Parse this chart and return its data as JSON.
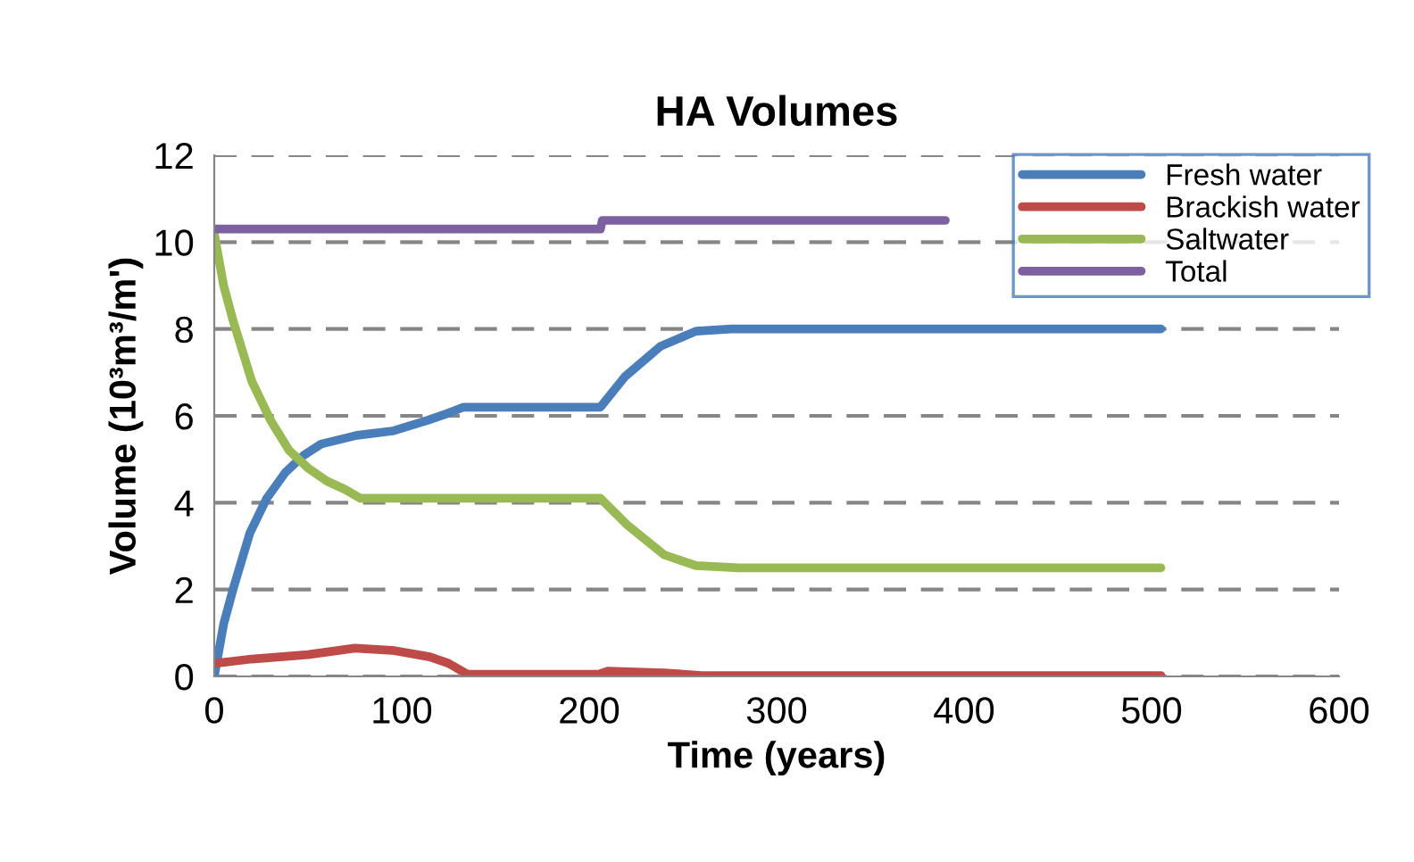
{
  "chart_data": {
    "type": "line",
    "title": "HA Volumes",
    "xlabel": "Time (years)",
    "ylabel": "Volume (10³m³/m')",
    "xlim": [
      0,
      600
    ],
    "xticks": [
      0,
      100,
      200,
      300,
      400,
      500,
      600
    ],
    "ylim": [
      0,
      12
    ],
    "yticks": [
      0,
      2,
      4,
      6,
      8,
      10,
      12
    ],
    "grid": "y",
    "legend": "top right",
    "marker": "none",
    "line_style": "solid",
    "series": [
      {
        "name": "Fresh water",
        "color": "#4a7ebb",
        "x": [
          0,
          5,
          10,
          19,
          28,
          38,
          48,
          57,
          76,
          95,
          114,
          124,
          133,
          206,
          219,
          238,
          257,
          276,
          505
        ],
        "values": [
          0,
          1.2,
          2,
          3.3,
          4.1,
          4.7,
          5.1,
          5.35,
          5.55,
          5.65,
          5.9,
          6.05,
          6.2,
          6.2,
          6.9,
          7.6,
          7.95,
          8.0,
          8.0
        ]
      },
      {
        "name": "Brackish water",
        "color": "#be4b48",
        "x": [
          0,
          20,
          50,
          75,
          95,
          115,
          125,
          135,
          205,
          210,
          240,
          260,
          505
        ],
        "values": [
          0.3,
          0.4,
          0.5,
          0.65,
          0.6,
          0.45,
          0.3,
          0.05,
          0.05,
          0.12,
          0.08,
          0.02,
          0.02
        ]
      },
      {
        "name": "Saltwater",
        "color": "#98b954",
        "x": [
          0,
          5,
          10,
          20,
          30,
          40,
          50,
          60,
          70,
          78,
          206,
          220,
          240,
          257,
          280,
          505
        ],
        "values": [
          10.2,
          9,
          8.2,
          6.8,
          5.9,
          5.2,
          4.8,
          4.5,
          4.3,
          4.1,
          4.1,
          3.5,
          2.8,
          2.55,
          2.5,
          2.5
        ]
      },
      {
        "name": "Total",
        "color": "#7d60a0",
        "x": [
          0,
          206,
          207,
          390
        ],
        "values": [
          10.3,
          10.3,
          10.5,
          10.5
        ]
      }
    ]
  }
}
